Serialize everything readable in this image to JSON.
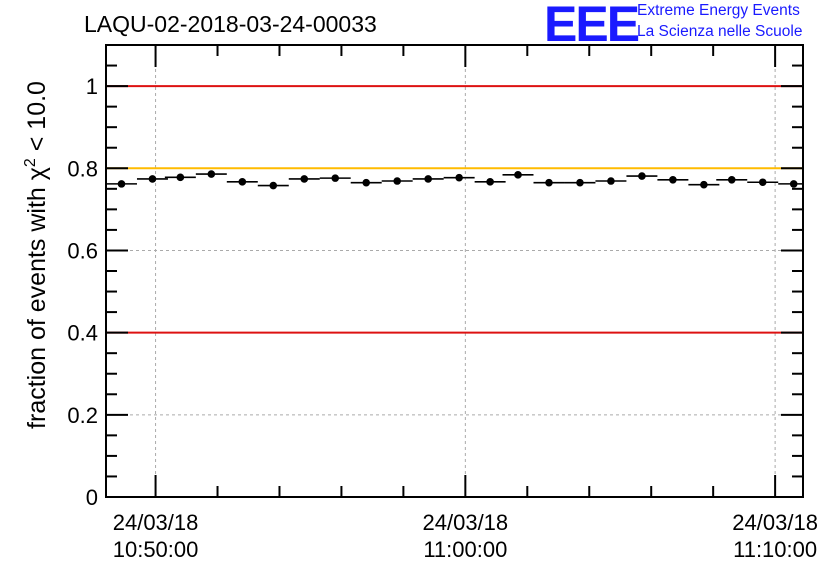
{
  "chart_data": {
    "type": "scatter",
    "title": "LAQU-02-2018-03-24-00033",
    "ylabel_prefix": "fraction of events with ",
    "ylabel_symbol": "χ",
    "ylabel_sup": "2",
    "ylabel_suffix": " < 10.0",
    "xlabel": "",
    "ylim": [
      0,
      1.1
    ],
    "yticks": [
      "0",
      "0.2",
      "0.4",
      "0.6",
      "0.8",
      "1"
    ],
    "ytick_values": [
      0,
      0.2,
      0.4,
      0.6,
      0.8,
      1.0
    ],
    "xlim_minutes": [
      -1.6,
      20.9
    ],
    "xtick_minutes": [
      0,
      10,
      20
    ],
    "xticks": [
      {
        "date": "24/03/18",
        "time": "10:50:00"
      },
      {
        "date": "24/03/18",
        "time": "11:00:00"
      },
      {
        "date": "24/03/18",
        "time": "11:10:00"
      }
    ],
    "grid": true,
    "reference_lines": [
      {
        "y": 1.0,
        "color": "#dd1111"
      },
      {
        "y": 0.8,
        "color": "#ffbb00"
      },
      {
        "y": 0.4,
        "color": "#dd1111"
      }
    ],
    "bin_width_minutes": 1.0,
    "series": [
      {
        "name": "fraction",
        "x": [
          -1.1,
          -0.1,
          0.8,
          1.8,
          2.8,
          3.8,
          4.8,
          5.8,
          6.8,
          7.8,
          8.8,
          9.8,
          10.8,
          11.7,
          12.7,
          13.7,
          14.7,
          15.7,
          16.7,
          17.7,
          18.6,
          19.6,
          20.6
        ],
        "y": [
          0.762,
          0.774,
          0.778,
          0.786,
          0.767,
          0.758,
          0.774,
          0.776,
          0.765,
          0.769,
          0.774,
          0.777,
          0.767,
          0.784,
          0.765,
          0.765,
          0.769,
          0.781,
          0.772,
          0.76,
          0.772,
          0.766,
          0.762
        ]
      }
    ]
  },
  "logo": {
    "letters": "EEE",
    "line1": "Extreme Energy Events",
    "line2": "La Scienza nelle Scuole",
    "color": "#1a1aff"
  }
}
